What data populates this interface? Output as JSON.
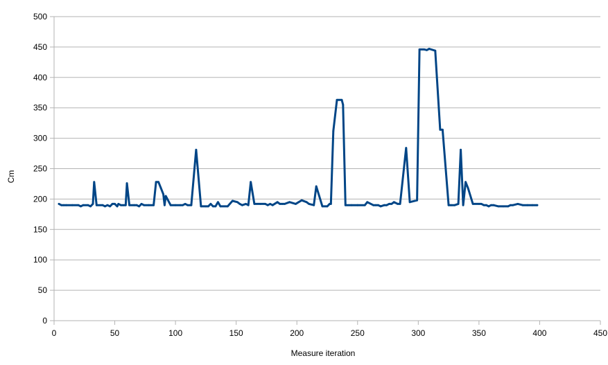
{
  "chart_data": {
    "type": "line",
    "title": "",
    "xlabel": "Measure iteration",
    "ylabel": "Cm",
    "xlim": [
      0,
      450
    ],
    "ylim": [
      0,
      500
    ],
    "x_ticks": [
      "0",
      "50",
      "100",
      "150",
      "200",
      "250",
      "300",
      "350",
      "400",
      "450"
    ],
    "y_ticks": [
      "0",
      "50",
      "100",
      "150",
      "200",
      "250",
      "300",
      "350",
      "400",
      "450",
      "500"
    ],
    "grid": "horizontal",
    "legend": "none",
    "series_color": "#004586",
    "series": [
      {
        "x": [
          4,
          6,
          8,
          10,
          15,
          20,
          22,
          24,
          28,
          30,
          32,
          33,
          35,
          40,
          42,
          44,
          46,
          48,
          50,
          52,
          53,
          55,
          57,
          59,
          60,
          62,
          66,
          68,
          70,
          72,
          74,
          78,
          82,
          84,
          86,
          88,
          90,
          91,
          92,
          96,
          100,
          104,
          106,
          108,
          110,
          113,
          117,
          121,
          125,
          127,
          129,
          131,
          133,
          135,
          137,
          143,
          147,
          151,
          153,
          155,
          158,
          160,
          162,
          165,
          170,
          174,
          176,
          178,
          180,
          184,
          186,
          188,
          190,
          194,
          199,
          204,
          208,
          210,
          214,
          216,
          221,
          225,
          227,
          228,
          230,
          233,
          237,
          238,
          240,
          245,
          250,
          256,
          258,
          263,
          265,
          267,
          269,
          272,
          274,
          276,
          278,
          280,
          283,
          285,
          290,
          293,
          299,
          301,
          305,
          307,
          309,
          314,
          318,
          320,
          325,
          327,
          330,
          333,
          335,
          337,
          339,
          341,
          345,
          350,
          352,
          354,
          356,
          358,
          360,
          362,
          366,
          370,
          374,
          376,
          378,
          382,
          386,
          390,
          394,
          398
        ],
        "y": [
          192,
          190,
          190,
          190,
          190,
          190,
          188,
          190,
          190,
          188,
          192,
          228,
          190,
          190,
          188,
          190,
          188,
          192,
          192,
          188,
          192,
          190,
          190,
          190,
          226,
          190,
          190,
          190,
          188,
          192,
          190,
          190,
          190,
          228,
          228,
          218,
          208,
          190,
          205,
          190,
          190,
          190,
          190,
          192,
          190,
          190,
          281,
          188,
          188,
          188,
          192,
          188,
          188,
          195,
          188,
          188,
          197,
          195,
          192,
          190,
          192,
          190,
          228,
          192,
          192,
          192,
          190,
          192,
          190,
          195,
          192,
          192,
          192,
          195,
          192,
          198,
          195,
          192,
          190,
          221,
          188,
          188,
          192,
          192,
          312,
          363,
          363,
          355,
          190,
          190,
          190,
          190,
          195,
          190,
          190,
          190,
          188,
          190,
          190,
          192,
          192,
          195,
          192,
          192,
          284,
          195,
          198,
          446,
          446,
          445,
          447,
          444,
          314,
          314,
          190,
          190,
          190,
          192,
          281,
          190,
          228,
          218,
          192,
          192,
          192,
          190,
          190,
          188,
          190,
          190,
          188,
          188,
          188,
          190,
          190,
          192,
          190,
          190,
          190,
          190
        ]
      }
    ]
  }
}
